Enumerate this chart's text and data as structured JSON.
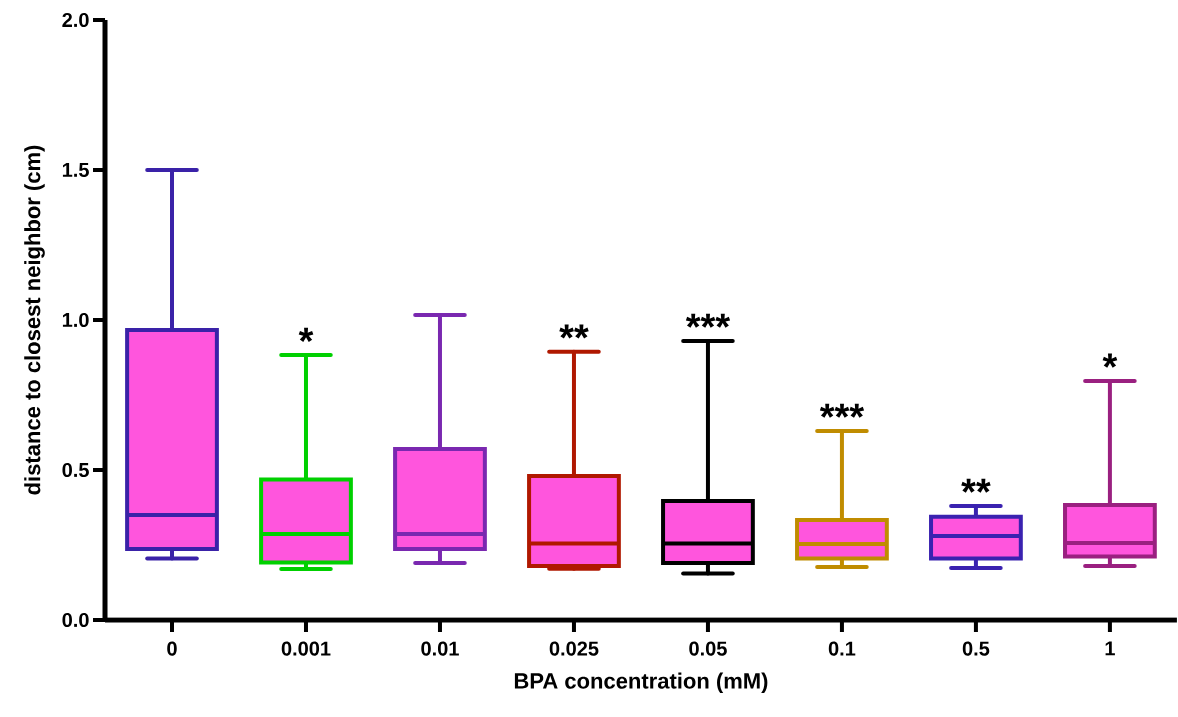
{
  "chart_data": {
    "type": "box",
    "xlabel": "BPA concentration (mM)",
    "ylabel": "distance to closest neighbor (cm)",
    "categories": [
      "0",
      "0.001",
      "0.01",
      "0.025",
      "0.05",
      "0.1",
      "0.5",
      "1"
    ],
    "colors": [
      "#3a22a8",
      "#00d000",
      "#7a28b0",
      "#b01800",
      "#000000",
      "#c08c00",
      "#3a22b0",
      "#9a2080"
    ],
    "boxes": [
      {
        "low": 0.205,
        "q1": 0.237,
        "median": 0.35,
        "q3": 0.967,
        "high": 1.5
      },
      {
        "low": 0.17,
        "q1": 0.192,
        "median": 0.287,
        "q3": 0.468,
        "high": 0.883
      },
      {
        "low": 0.19,
        "q1": 0.237,
        "median": 0.287,
        "q3": 0.57,
        "high": 1.017
      },
      {
        "low": 0.171,
        "q1": 0.18,
        "median": 0.255,
        "q3": 0.48,
        "high": 0.894
      },
      {
        "low": 0.155,
        "q1": 0.19,
        "median": 0.255,
        "q3": 0.397,
        "high": 0.93
      },
      {
        "low": 0.177,
        "q1": 0.205,
        "median": 0.253,
        "q3": 0.333,
        "high": 0.63
      },
      {
        "low": 0.173,
        "q1": 0.205,
        "median": 0.28,
        "q3": 0.344,
        "high": 0.38
      },
      {
        "low": 0.18,
        "q1": 0.212,
        "median": 0.257,
        "q3": 0.383,
        "high": 0.797
      }
    ],
    "ylim": [
      0,
      2
    ],
    "yticks": [
      {
        "value": 0,
        "label": "0.0"
      },
      {
        "value": 0.5,
        "label": "0.5"
      },
      {
        "value": 1,
        "label": "1.0"
      },
      {
        "value": 1.5,
        "label": "1.5"
      },
      {
        "value": 2,
        "label": "2.0"
      }
    ],
    "annotations": [
      {
        "text": "*",
        "x": "0.001",
        "y": 0.883
      },
      {
        "text": "**",
        "x": "0.025",
        "y": 0.894
      },
      {
        "text": "***",
        "x": "0.05",
        "y": 0.93
      },
      {
        "text": "***",
        "x": "0.1",
        "y": 0.63
      },
      {
        "text": "**",
        "x": "0.5",
        "y": 0.38
      },
      {
        "text": "*",
        "x": "1",
        "y": 0.797
      }
    ]
  }
}
